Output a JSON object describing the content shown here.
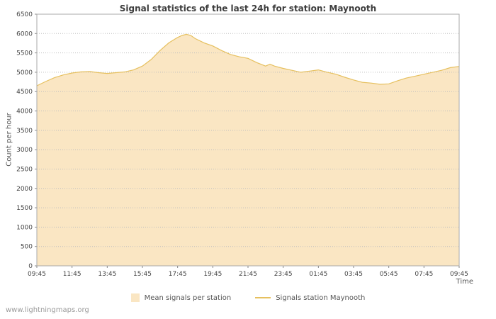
{
  "title": "Signal statistics of the last 24h for station: Maynooth",
  "watermark": "www.lightningmaps.org",
  "chart_data": {
    "type": "area",
    "title": "Signal statistics of the last 24h for station: Maynooth",
    "xlabel": "Time",
    "ylabel": "Count per hour",
    "xlim": [
      0,
      24
    ],
    "ylim": [
      0,
      6500
    ],
    "ytick_step": 500,
    "x_tick_labels": [
      "09:45",
      "11:45",
      "13:45",
      "15:45",
      "17:45",
      "19:45",
      "21:45",
      "23:45",
      "01:45",
      "03:45",
      "05:45",
      "07:45",
      "09:45"
    ],
    "grid": "horizontal-dotted",
    "legend_position": "bottom",
    "colors": {
      "area_fill": "#FAE6C3",
      "station_line": "#E6C05F",
      "gridline": "#BFBFBF",
      "axis": "#AAAAAA",
      "tick_text": "#444444"
    },
    "series": [
      {
        "name": "Mean signals per station",
        "type": "area",
        "color": "#FAE6C3",
        "x": [
          0,
          0.5,
          1,
          1.5,
          2,
          2.5,
          3,
          3.5,
          4,
          4.5,
          5,
          5.5,
          6,
          6.5,
          7,
          7.5,
          8,
          8.25,
          8.5,
          8.75,
          9,
          9.5,
          10,
          10.5,
          11,
          11.5,
          12,
          12.5,
          13,
          13.25,
          13.5,
          14,
          14.5,
          15,
          15.5,
          16,
          16.5,
          17,
          17.5,
          18,
          18.5,
          19,
          19.5,
          20,
          20.5,
          21,
          21.5,
          22,
          22.5,
          23,
          23.5,
          24
        ],
        "values": [
          4650,
          4760,
          4860,
          4930,
          4980,
          5010,
          5020,
          4990,
          4970,
          4990,
          5010,
          5060,
          5160,
          5330,
          5560,
          5760,
          5900,
          5950,
          5980,
          5950,
          5870,
          5760,
          5680,
          5560,
          5460,
          5400,
          5360,
          5250,
          5160,
          5210,
          5160,
          5100,
          5050,
          5000,
          5030,
          5060,
          5000,
          4950,
          4870,
          4800,
          4740,
          4720,
          4690,
          4700,
          4780,
          4850,
          4900,
          4950,
          5000,
          5050,
          5120,
          5150
        ]
      },
      {
        "name": "Signals station Maynooth",
        "type": "line",
        "color": "#E6C05F",
        "x": [
          0,
          0.5,
          1,
          1.5,
          2,
          2.5,
          3,
          3.5,
          4,
          4.5,
          5,
          5.5,
          6,
          6.5,
          7,
          7.5,
          8,
          8.25,
          8.5,
          8.75,
          9,
          9.5,
          10,
          10.5,
          11,
          11.5,
          12,
          12.5,
          13,
          13.25,
          13.5,
          14,
          14.5,
          15,
          15.5,
          16,
          16.5,
          17,
          17.5,
          18,
          18.5,
          19,
          19.5,
          20,
          20.5,
          21,
          21.5,
          22,
          22.5,
          23,
          23.5,
          24
        ],
        "values": [
          4650,
          4760,
          4860,
          4930,
          4980,
          5010,
          5020,
          4990,
          4970,
          4990,
          5010,
          5060,
          5160,
          5330,
          5560,
          5760,
          5900,
          5950,
          5980,
          5950,
          5870,
          5760,
          5680,
          5560,
          5460,
          5400,
          5360,
          5250,
          5160,
          5210,
          5160,
          5100,
          5050,
          5000,
          5030,
          5060,
          5000,
          4950,
          4870,
          4800,
          4740,
          4720,
          4690,
          4700,
          4780,
          4850,
          4900,
          4950,
          5000,
          5050,
          5120,
          5150
        ]
      }
    ]
  }
}
